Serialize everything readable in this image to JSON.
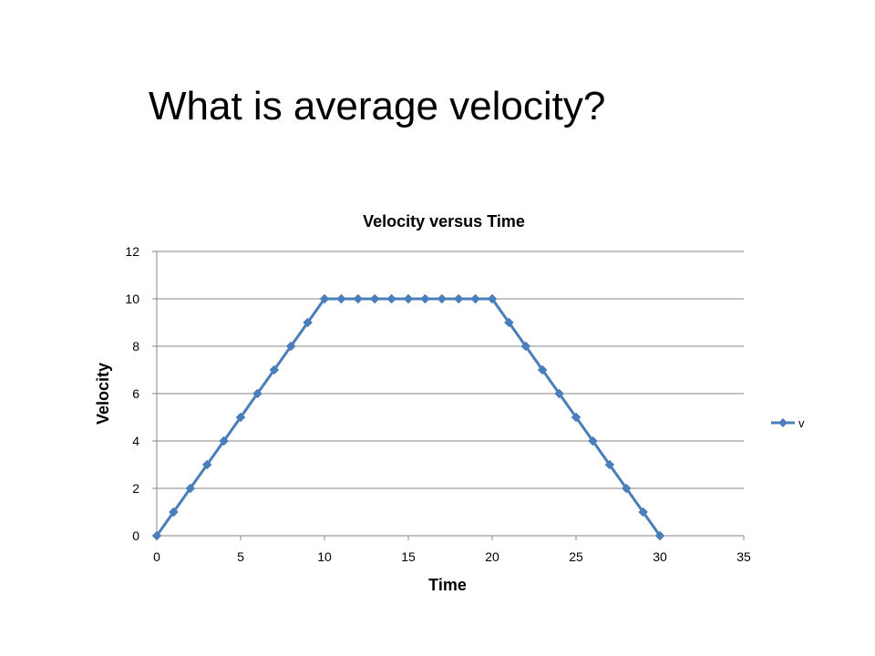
{
  "slide": {
    "title": "What is average velocity?"
  },
  "colors": {
    "series": "#4a7ebb",
    "grid": "#868686",
    "text": "#000000"
  },
  "chart_data": {
    "type": "line",
    "title": "Velocity versus Time",
    "xlabel": "Time",
    "ylabel": "Velocity",
    "xlim": [
      0,
      35
    ],
    "ylim": [
      0,
      12
    ],
    "xticks": [
      0,
      5,
      10,
      15,
      20,
      25,
      30,
      35
    ],
    "yticks": [
      0,
      2,
      4,
      6,
      8,
      10,
      12
    ],
    "grid": "horizontal",
    "legend_position": "right",
    "marker": "diamond",
    "series": [
      {
        "name": "v",
        "x": [
          0,
          1,
          2,
          3,
          4,
          5,
          6,
          7,
          8,
          9,
          10,
          11,
          12,
          13,
          14,
          15,
          16,
          17,
          18,
          19,
          20,
          21,
          22,
          23,
          24,
          25,
          26,
          27,
          28,
          29,
          30
        ],
        "y": [
          0,
          1,
          2,
          3,
          4,
          5,
          6,
          7,
          8,
          9,
          10,
          10,
          10,
          10,
          10,
          10,
          10,
          10,
          10,
          10,
          10,
          9,
          8,
          7,
          6,
          5,
          4,
          3,
          2,
          1,
          0
        ]
      }
    ]
  }
}
